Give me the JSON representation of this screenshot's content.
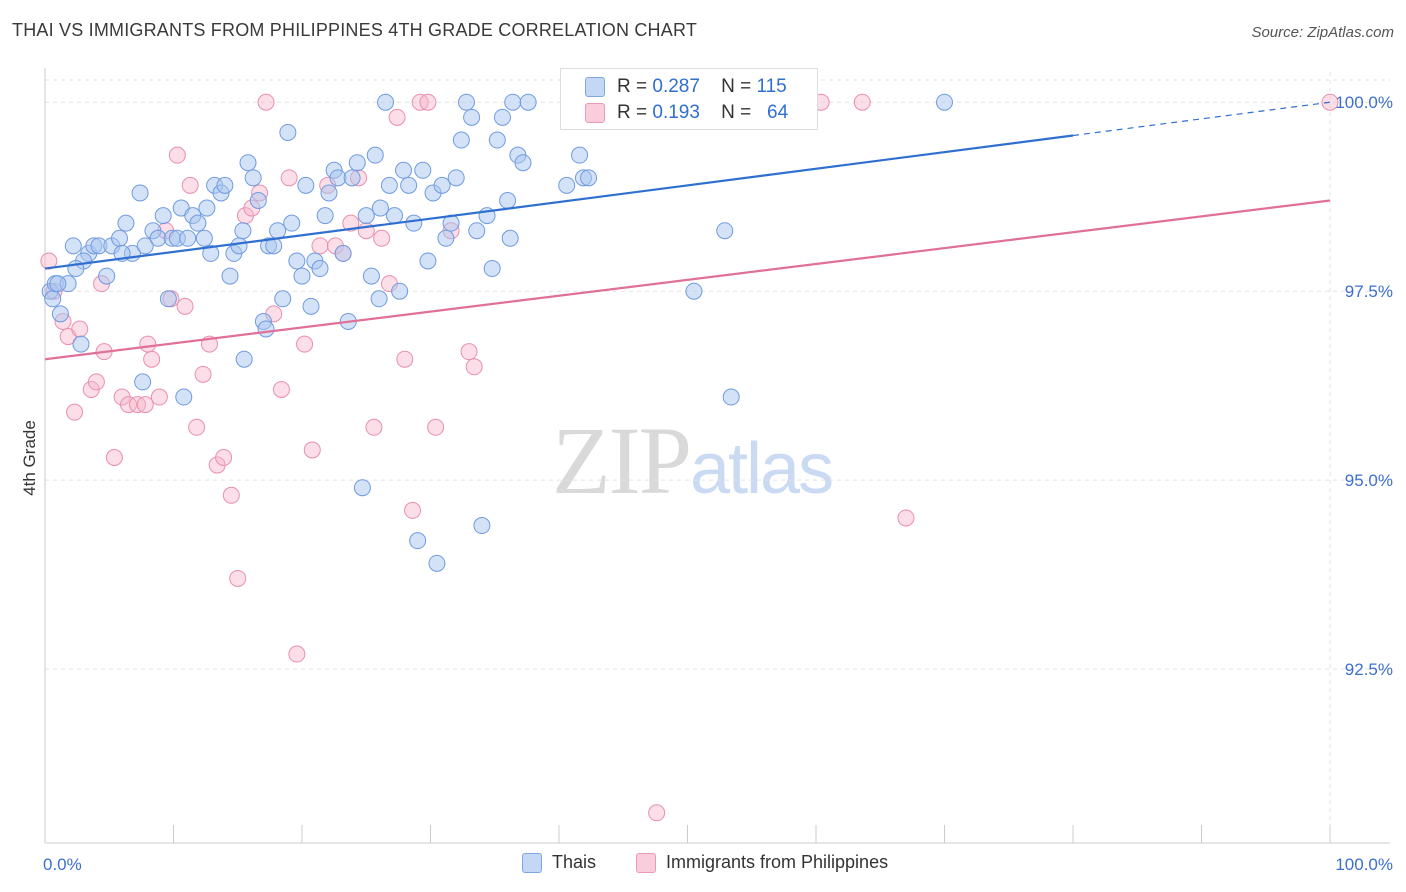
{
  "title": "THAI VS IMMIGRANTS FROM PHILIPPINES 4TH GRADE CORRELATION CHART",
  "source": "Source: ZipAtlas.com",
  "watermark": {
    "zip": "ZIP",
    "atlas": "atlas"
  },
  "legend_top": {
    "rows": [
      {
        "r_key": "R =",
        "r_val": "0.287",
        "n_key": "N =",
        "n_val": "115",
        "color": "#a9c6f0"
      },
      {
        "r_key": "R =",
        "r_val": "0.193",
        "n_key": "N =",
        "n_val": "64",
        "color": "#f7b6ca"
      }
    ]
  },
  "legend_bottom": {
    "items": [
      {
        "label": "Thais",
        "color": "#a9c6f0"
      },
      {
        "label": "Immigrants from Philippines",
        "color": "#f7b6ca"
      }
    ]
  },
  "colors": {
    "thai_point": "#a9c6f0",
    "thai_stroke": "#6f9be0",
    "thai_line": "#2f6fd0",
    "phil_point": "#f7b6ca",
    "phil_stroke": "#e98fae",
    "phil_line": "#e07098",
    "axis_label": "#3d6fcf",
    "grid": "#e2e2e2"
  },
  "chart_data": {
    "type": "scatter",
    "title": "THAI VS IMMIGRANTS FROM PHILIPPINES 4TH GRADE CORRELATION CHART",
    "xlabel": "",
    "ylabel": "4th Grade",
    "xlim": [
      0,
      100
    ],
    "ylim": [
      90.2,
      100.4
    ],
    "x_tick_labels": [
      "0.0%",
      "100.0%"
    ],
    "y_ticks": [
      92.5,
      95.0,
      97.5,
      100.0
    ],
    "y_tick_labels": [
      "92.5%",
      "95.0%",
      "97.5%",
      "100.0%"
    ],
    "grid": true,
    "legend_position": "top-center",
    "series": [
      {
        "name": "Thais",
        "R": 0.287,
        "N": 115,
        "trend": {
          "x0": 0,
          "y0": 97.8,
          "x1": 100,
          "y1": 100.0,
          "solid_until": 80
        },
        "points": [
          [
            0.4,
            97.5
          ],
          [
            0.6,
            97.4
          ],
          [
            0.8,
            97.6
          ],
          [
            1.2,
            97.2
          ],
          [
            1.8,
            97.6
          ],
          [
            2.2,
            98.1
          ],
          [
            2.8,
            96.8
          ],
          [
            3.4,
            98.0
          ],
          [
            3.8,
            98.1
          ],
          [
            4.2,
            98.1
          ],
          [
            4.8,
            97.7
          ],
          [
            5.2,
            98.1
          ],
          [
            5.8,
            98.2
          ],
          [
            6.3,
            98.4
          ],
          [
            6.8,
            98.0
          ],
          [
            7.4,
            98.8
          ],
          [
            7.8,
            98.1
          ],
          [
            8.4,
            98.3
          ],
          [
            8.8,
            98.2
          ],
          [
            9.2,
            98.5
          ],
          [
            9.6,
            97.4
          ],
          [
            9.9,
            98.2
          ],
          [
            10.3,
            98.2
          ],
          [
            10.6,
            98.6
          ],
          [
            11.1,
            98.2
          ],
          [
            11.5,
            98.5
          ],
          [
            11.9,
            98.4
          ],
          [
            12.4,
            98.2
          ],
          [
            12.6,
            98.6
          ],
          [
            12.9,
            98.0
          ],
          [
            13.2,
            98.9
          ],
          [
            13.7,
            98.8
          ],
          [
            14.0,
            98.9
          ],
          [
            14.4,
            97.7
          ],
          [
            14.7,
            98.0
          ],
          [
            15.1,
            98.1
          ],
          [
            15.4,
            98.3
          ],
          [
            15.8,
            99.2
          ],
          [
            16.2,
            99.0
          ],
          [
            16.6,
            98.7
          ],
          [
            17.0,
            97.1
          ],
          [
            17.4,
            98.1
          ],
          [
            17.8,
            98.1
          ],
          [
            18.1,
            98.3
          ],
          [
            18.5,
            97.4
          ],
          [
            18.9,
            99.6
          ],
          [
            19.2,
            98.4
          ],
          [
            19.6,
            97.9
          ],
          [
            20.0,
            97.7
          ],
          [
            20.3,
            98.9
          ],
          [
            20.7,
            97.3
          ],
          [
            21.0,
            97.9
          ],
          [
            21.4,
            97.8
          ],
          [
            21.8,
            98.5
          ],
          [
            22.1,
            98.8
          ],
          [
            22.5,
            99.1
          ],
          [
            22.8,
            99.0
          ],
          [
            23.2,
            98.0
          ],
          [
            23.6,
            97.1
          ],
          [
            23.9,
            99.0
          ],
          [
            24.3,
            99.2
          ],
          [
            24.7,
            94.9
          ],
          [
            25.0,
            98.5
          ],
          [
            25.4,
            97.7
          ],
          [
            25.7,
            99.3
          ],
          [
            26.1,
            98.6
          ],
          [
            26.5,
            100.0
          ],
          [
            26.8,
            98.9
          ],
          [
            27.2,
            98.5
          ],
          [
            27.6,
            97.5
          ],
          [
            27.9,
            99.1
          ],
          [
            28.3,
            98.9
          ],
          [
            28.7,
            98.4
          ],
          [
            29.0,
            94.2
          ],
          [
            29.4,
            99.1
          ],
          [
            29.8,
            97.9
          ],
          [
            30.2,
            98.8
          ],
          [
            30.5,
            93.9
          ],
          [
            30.9,
            98.9
          ],
          [
            31.2,
            98.2
          ],
          [
            31.6,
            98.4
          ],
          [
            32.0,
            99.0
          ],
          [
            32.4,
            99.5
          ],
          [
            32.8,
            100.0
          ],
          [
            33.2,
            99.8
          ],
          [
            33.6,
            98.3
          ],
          [
            34.0,
            94.4
          ],
          [
            34.4,
            98.5
          ],
          [
            34.8,
            97.8
          ],
          [
            35.2,
            99.5
          ],
          [
            35.6,
            99.8
          ],
          [
            36.0,
            98.7
          ],
          [
            36.4,
            100.0
          ],
          [
            36.8,
            99.3
          ],
          [
            37.2,
            99.2
          ],
          [
            37.6,
            100.0
          ],
          [
            40.6,
            98.9
          ],
          [
            41.6,
            99.3
          ],
          [
            41.9,
            99.0
          ],
          [
            42.3,
            99.0
          ],
          [
            50.5,
            97.5
          ],
          [
            52.9,
            98.3
          ],
          [
            53.4,
            96.1
          ],
          [
            70.0,
            100.0
          ],
          [
            1.0,
            97.6
          ],
          [
            3.0,
            97.9
          ],
          [
            7.6,
            96.3
          ],
          [
            15.5,
            96.6
          ],
          [
            17.2,
            97.0
          ],
          [
            10.8,
            96.1
          ],
          [
            2.4,
            97.8
          ],
          [
            6.0,
            98.0
          ],
          [
            26.0,
            97.4
          ],
          [
            36.2,
            98.2
          ],
          [
            44.0,
            100.0
          ]
        ]
      },
      {
        "name": "Immigrants from Philippines",
        "R": 0.193,
        "N": 64,
        "trend": {
          "x0": 0,
          "y0": 96.6,
          "x1": 100,
          "y1": 98.7
        },
        "points": [
          [
            0.3,
            97.9
          ],
          [
            0.7,
            97.5
          ],
          [
            1.4,
            97.1
          ],
          [
            1.8,
            96.9
          ],
          [
            2.3,
            95.9
          ],
          [
            2.7,
            97.0
          ],
          [
            3.6,
            96.2
          ],
          [
            4.0,
            96.3
          ],
          [
            4.6,
            96.7
          ],
          [
            5.4,
            95.3
          ],
          [
            6.0,
            96.1
          ],
          [
            6.5,
            96.0
          ],
          [
            7.2,
            96.0
          ],
          [
            7.8,
            96.0
          ],
          [
            8.3,
            96.6
          ],
          [
            8.9,
            96.1
          ],
          [
            9.4,
            98.3
          ],
          [
            9.8,
            97.4
          ],
          [
            10.3,
            99.3
          ],
          [
            10.9,
            97.3
          ],
          [
            11.3,
            98.9
          ],
          [
            11.8,
            95.7
          ],
          [
            12.3,
            96.4
          ],
          [
            12.8,
            96.8
          ],
          [
            13.4,
            95.2
          ],
          [
            13.9,
            95.3
          ],
          [
            14.5,
            94.8
          ],
          [
            15.0,
            93.7
          ],
          [
            15.6,
            98.5
          ],
          [
            16.1,
            98.6
          ],
          [
            16.7,
            98.8
          ],
          [
            17.2,
            100.0
          ],
          [
            17.8,
            97.2
          ],
          [
            18.4,
            96.2
          ],
          [
            19.0,
            99.0
          ],
          [
            19.6,
            92.7
          ],
          [
            20.2,
            96.8
          ],
          [
            20.8,
            95.4
          ],
          [
            21.4,
            98.1
          ],
          [
            22.0,
            98.9
          ],
          [
            22.6,
            98.1
          ],
          [
            23.2,
            98.0
          ],
          [
            23.8,
            98.4
          ],
          [
            24.4,
            99.0
          ],
          [
            25.0,
            98.3
          ],
          [
            25.6,
            95.7
          ],
          [
            26.2,
            98.2
          ],
          [
            26.8,
            97.6
          ],
          [
            27.4,
            99.8
          ],
          [
            28.0,
            96.6
          ],
          [
            28.6,
            94.6
          ],
          [
            29.2,
            100.0
          ],
          [
            29.8,
            100.0
          ],
          [
            30.4,
            95.7
          ],
          [
            31.6,
            98.3
          ],
          [
            33.0,
            96.7
          ],
          [
            33.4,
            96.5
          ],
          [
            47.6,
            90.6
          ],
          [
            60.4,
            100.0
          ],
          [
            63.6,
            100.0
          ],
          [
            67.0,
            94.5
          ],
          [
            100.0,
            100.0
          ],
          [
            4.4,
            97.6
          ],
          [
            8.0,
            96.8
          ]
        ]
      }
    ]
  }
}
